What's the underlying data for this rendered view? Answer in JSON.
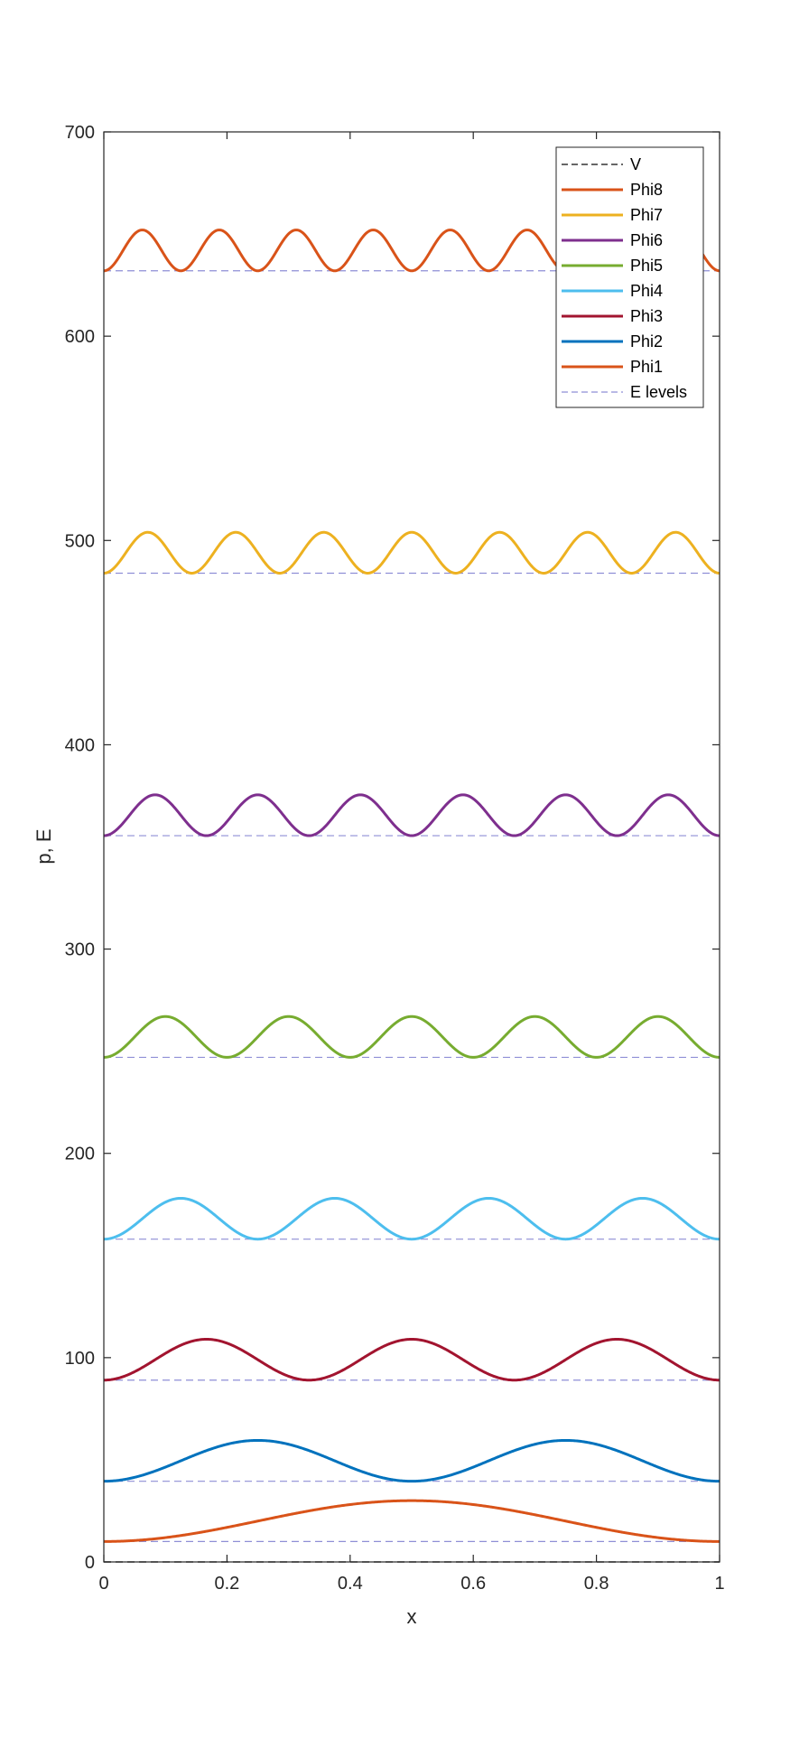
{
  "chart_data": {
    "type": "line",
    "xlabel": "x",
    "ylabel": "p, E",
    "xlim": [
      0,
      1
    ],
    "ylim": [
      0,
      700
    ],
    "x_ticks": [
      0,
      0.2,
      0.4,
      0.6,
      0.8,
      1
    ],
    "x_tick_labels": [
      "0",
      "0.2",
      "0.4",
      "0.6",
      "0.8",
      "1"
    ],
    "y_ticks": [
      0,
      100,
      200,
      300,
      400,
      500,
      600,
      700
    ],
    "y_tick_labels": [
      "0",
      "100",
      "200",
      "300",
      "400",
      "500",
      "600",
      "700"
    ],
    "grid": false,
    "legend_position": "top-right",
    "potential": {
      "name": "V",
      "value": 0,
      "color": "#333333",
      "style": "dashed"
    },
    "energy_levels_name": "E levels",
    "energy_levels_color": "#8f8fd6",
    "amplitude": 20,
    "series": [
      {
        "name": "Phi8",
        "n": 8,
        "energy": 632,
        "color": "#d95319"
      },
      {
        "name": "Phi7",
        "n": 7,
        "energy": 484,
        "color": "#edb120"
      },
      {
        "name": "Phi6",
        "n": 6,
        "energy": 355.5,
        "color": "#7e2f8e"
      },
      {
        "name": "Phi5",
        "n": 5,
        "energy": 247,
        "color": "#77ac30"
      },
      {
        "name": "Phi4",
        "n": 4,
        "energy": 158,
        "color": "#4dbeee"
      },
      {
        "name": "Phi3",
        "n": 3,
        "energy": 89,
        "color": "#a2142f"
      },
      {
        "name": "Phi2",
        "n": 2,
        "energy": 39.5,
        "color": "#0072bd"
      },
      {
        "name": "Phi1",
        "n": 1,
        "energy": 10,
        "color": "#d95319"
      }
    ]
  }
}
